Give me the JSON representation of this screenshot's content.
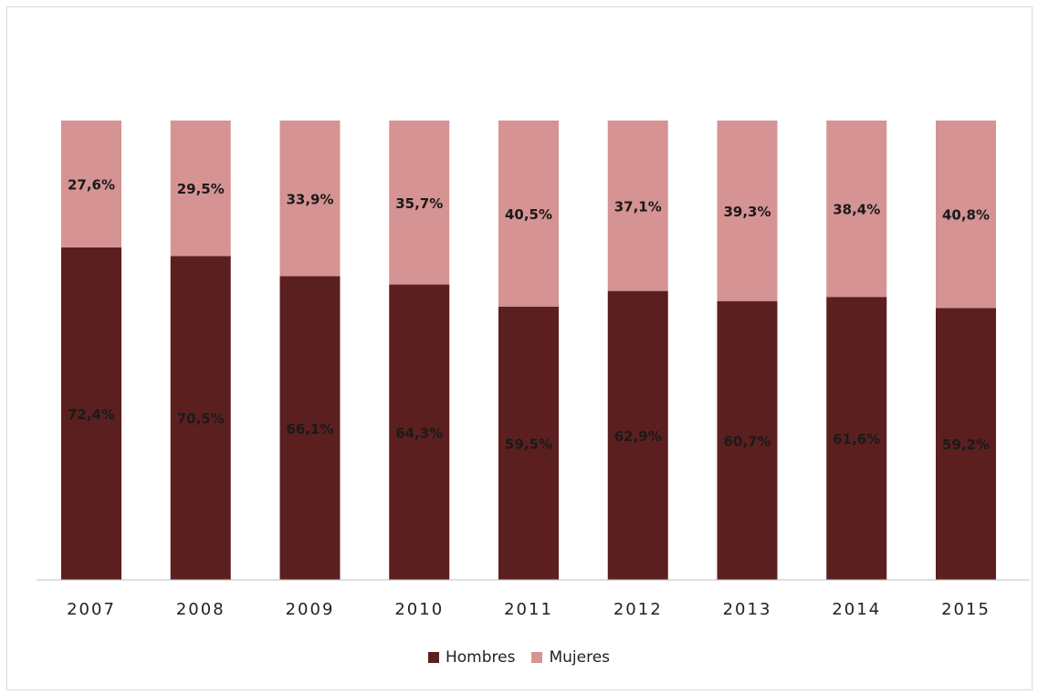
{
  "chart_data": {
    "type": "bar",
    "stacked": true,
    "percent_stacked": true,
    "categories": [
      "2007",
      "2008",
      "2009",
      "2010",
      "2011",
      "2012",
      "2013",
      "2014",
      "2015"
    ],
    "series": [
      {
        "name": "Hombres",
        "color": "#5c1f1f",
        "values": [
          72.4,
          70.5,
          66.1,
          64.3,
          59.5,
          62.9,
          60.7,
          61.6,
          59.2
        ],
        "labels": [
          "72,4%",
          "70,5%",
          "66,1%",
          "64,3%",
          "59,5%",
          "62,9%",
          "60,7%",
          "61,6%",
          "59,2%"
        ]
      },
      {
        "name": "Mujeres",
        "color": "#d69393",
        "values": [
          27.6,
          29.5,
          33.9,
          35.7,
          40.5,
          37.1,
          39.3,
          38.4,
          40.8
        ],
        "labels": [
          "27,6%",
          "29,5%",
          "33,9%",
          "35,7%",
          "40,5%",
          "37,1%",
          "39,3%",
          "38,4%",
          "40,8%"
        ]
      }
    ],
    "ylim": [
      0,
      100
    ],
    "grid": false,
    "legend_position": "bottom"
  }
}
